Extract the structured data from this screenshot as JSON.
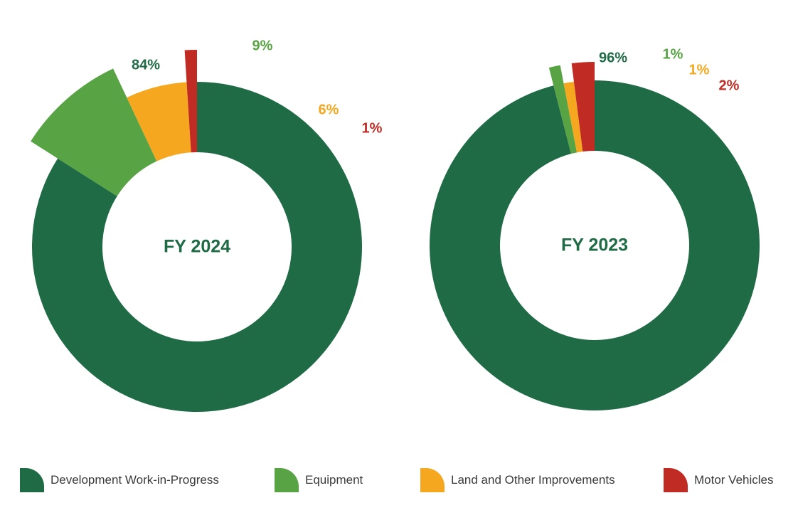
{
  "chart_data": [
    {
      "type": "pie",
      "center_label": "FY 2024",
      "series": [
        {
          "name": "Development Work-in-Progress",
          "value": 84,
          "label": "84%",
          "color": "#1f6b45",
          "exploded": false
        },
        {
          "name": "Equipment",
          "value": 9,
          "label": "9%",
          "color": "#58a343",
          "exploded": true
        },
        {
          "name": "Land and Other Improvements",
          "value": 6,
          "label": "6%",
          "color": "#f5a81f",
          "exploded": false
        },
        {
          "name": "Motor Vehicles",
          "value": 1,
          "label": "1%",
          "color": "#c02b24",
          "exploded": true
        }
      ]
    },
    {
      "type": "pie",
      "center_label": "FY 2023",
      "series": [
        {
          "name": "Development Work-in-Progress",
          "value": 96,
          "label": "96%",
          "color": "#1f6b45",
          "exploded": false
        },
        {
          "name": "Equipment",
          "value": 1,
          "label": "1%",
          "color": "#58a343",
          "exploded": true
        },
        {
          "name": "Land and Other Improvements",
          "value": 1,
          "label": "1%",
          "color": "#f5a81f",
          "exploded": false
        },
        {
          "name": "Motor Vehicles",
          "value": 2,
          "label": "2%",
          "color": "#c02b24",
          "exploded": true
        }
      ]
    }
  ],
  "legend": {
    "placement": "bottom",
    "items": [
      {
        "label": "Development Work-in-Progress",
        "color": "#1f6b45"
      },
      {
        "label": "Equipment",
        "color": "#58a343"
      },
      {
        "label": "Land and Other Improvements",
        "color": "#f5a81f"
      },
      {
        "label": "Motor Vehicles",
        "color": "#c02b24"
      }
    ]
  }
}
